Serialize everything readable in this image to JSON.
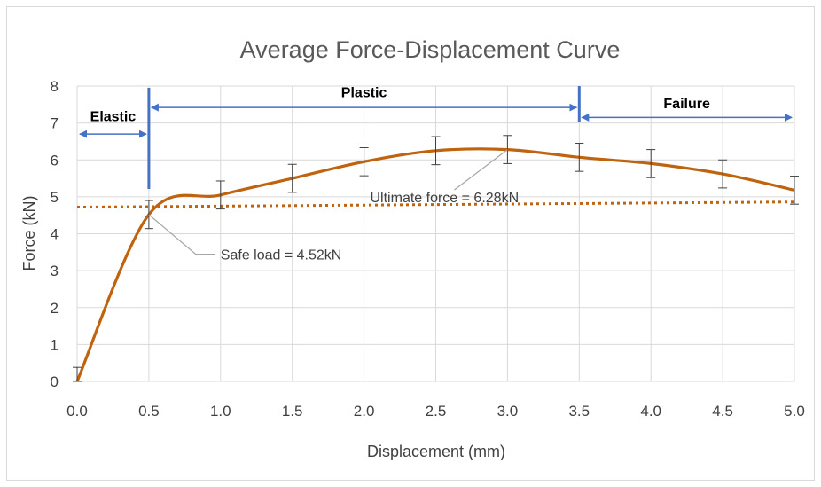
{
  "chart_data": {
    "type": "line",
    "title": "Average Force-Displacement Curve",
    "xlabel": "Displacement (mm)",
    "ylabel": "Force (kN)",
    "xlim": [
      0,
      5
    ],
    "ylim": [
      0,
      8
    ],
    "grid": true,
    "legend": "none",
    "x_ticks": [
      "0.0",
      "0.5",
      "1.0",
      "1.5",
      "2.0",
      "2.5",
      "3.0",
      "3.5",
      "4.0",
      "4.5",
      "5.0"
    ],
    "y_ticks": [
      "0",
      "1",
      "2",
      "3",
      "4",
      "5",
      "6",
      "7",
      "8"
    ],
    "series": [
      {
        "color": "#c0630f",
        "style": "solid",
        "x": [
          0,
          0.5,
          1.0,
          1.5,
          2.0,
          2.5,
          3.0,
          3.5,
          4.0,
          4.5,
          5.0
        ],
        "y": [
          0,
          4.52,
          5.05,
          5.5,
          5.95,
          6.25,
          6.28,
          6.07,
          5.9,
          5.62,
          5.18
        ],
        "error": [
          0.38,
          0.38,
          0.38,
          0.38,
          0.38,
          0.38,
          0.38,
          0.38,
          0.38,
          0.38,
          0.38
        ]
      },
      {
        "color": "#c0630f",
        "style": "dotted",
        "x": [
          0,
          5
        ],
        "y": [
          4.72,
          4.86
        ]
      }
    ],
    "regions": [
      {
        "label": "Elastic",
        "x_start": 0,
        "x_end": 0.5,
        "y": 6.7,
        "label_y": 7.05
      },
      {
        "label": "Plastic",
        "x_start": 0.5,
        "x_end": 3.5,
        "y": 7.42,
        "label_y": 7.7
      },
      {
        "label": "Failure",
        "x_start": 3.5,
        "x_end": 5.0,
        "y": 7.15,
        "label_y": 7.4
      }
    ],
    "boundaries": [
      0.5,
      3.5
    ],
    "annotations": [
      {
        "text": "Safe load = 4.52kN",
        "point": [
          0.5,
          4.52
        ],
        "label_at": [
          1.0,
          3.3
        ]
      },
      {
        "text": "Ultimate force = 6.28kN",
        "point": [
          3.0,
          6.28
        ],
        "label_at": [
          1.95,
          4.85
        ]
      }
    ],
    "colors": {
      "line": "#c0630f",
      "arrows": "#4472c4"
    }
  }
}
